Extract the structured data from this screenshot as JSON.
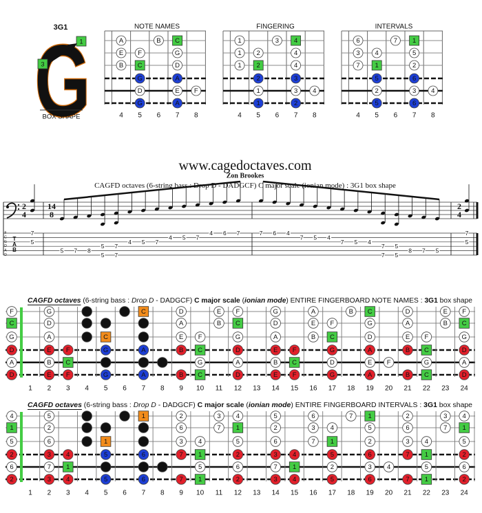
{
  "logo": {
    "name": "3G1",
    "letter": "G",
    "markers": [
      1,
      3
    ],
    "caption": "BOX SHAPE"
  },
  "square_colors": [
    "#44cc44",
    "#f28c1c"
  ],
  "mini_diagrams": {
    "frets": [
      4,
      5,
      6,
      7,
      8
    ],
    "colors": [
      [
        "#ffffff",
        null,
        "#ffffff",
        "#44cc44",
        null
      ],
      [
        "#ffffff",
        "#ffffff",
        null,
        "#ffffff",
        null
      ],
      [
        "#ffffff",
        "#44cc44",
        null,
        "#ffffff",
        null
      ],
      [
        null,
        "#1d3fd6",
        null,
        "#1d3fd6",
        null
      ],
      [
        null,
        "#ffffff",
        null,
        "#ffffff",
        "#ffffff"
      ],
      [
        null,
        "#1d3fd6",
        null,
        "#1d3fd6",
        null
      ]
    ],
    "panels": [
      {
        "title": "NOTE NAMES",
        "rows": [
          [
            "A",
            null,
            "B",
            "C",
            null
          ],
          [
            "E",
            "F",
            null,
            "G",
            null
          ],
          [
            "B",
            "C",
            null,
            "D",
            null
          ],
          [
            null,
            "G",
            null,
            "A",
            null
          ],
          [
            null,
            "D",
            null,
            "E",
            "F"
          ],
          [
            null,
            "G",
            null,
            "A",
            null
          ]
        ]
      },
      {
        "title": "FINGERING",
        "rows": [
          [
            1,
            null,
            3,
            4,
            null
          ],
          [
            1,
            2,
            null,
            4,
            null
          ],
          [
            1,
            2,
            null,
            4,
            null
          ],
          [
            null,
            2,
            null,
            3,
            null
          ],
          [
            null,
            1,
            null,
            3,
            4
          ],
          [
            null,
            1,
            null,
            2,
            null
          ]
        ]
      },
      {
        "title": "INTERVALS",
        "rows": [
          [
            6,
            null,
            7,
            1,
            null
          ],
          [
            3,
            4,
            null,
            5,
            null
          ],
          [
            7,
            1,
            null,
            2,
            null
          ],
          [
            null,
            5,
            null,
            6,
            null
          ],
          [
            null,
            2,
            null,
            3,
            4
          ],
          [
            null,
            5,
            null,
            6,
            null
          ]
        ]
      }
    ]
  },
  "score": {
    "site": "www.cagedoctaves.com",
    "author": "Zon Brookes",
    "subtitle": "CAGFD octaves (6-string bass : Drop D - DADGCF) C major scale (ionian mode) : 3G1 box shape",
    "time_signatures": [
      [
        2,
        4
      ],
      [
        14,
        8
      ],
      [
        2,
        4
      ]
    ],
    "tab_clef": "TAB",
    "string_names": [
      "F",
      "C",
      "G",
      "D",
      "A",
      "D"
    ],
    "measures": [
      [
        [
          7,
          null,
          5,
          null,
          null,
          null
        ]
      ],
      [
        [
          null,
          null,
          null,
          null,
          5,
          null
        ],
        [
          null,
          null,
          null,
          null,
          7,
          null
        ],
        [
          null,
          null,
          null,
          null,
          8,
          null
        ],
        [
          null,
          null,
          null,
          5,
          null,
          5
        ],
        [
          null,
          null,
          null,
          7,
          null,
          7
        ],
        [
          null,
          null,
          4,
          null,
          null,
          null
        ],
        [
          null,
          null,
          5,
          null,
          null,
          null
        ],
        [
          null,
          null,
          7,
          null,
          null,
          null
        ],
        [
          null,
          4,
          null,
          null,
          null,
          null
        ],
        [
          null,
          5,
          null,
          null,
          null,
          null
        ],
        [
          null,
          7,
          null,
          null,
          null,
          null
        ],
        [
          4,
          null,
          null,
          null,
          null,
          null
        ],
        [
          6,
          null,
          null,
          null,
          null,
          null
        ],
        [
          7,
          null,
          null,
          null,
          null,
          null
        ]
      ],
      [
        [
          7,
          null,
          null,
          null,
          null,
          null
        ],
        [
          6,
          null,
          null,
          null,
          null,
          null
        ],
        [
          4,
          null,
          null,
          null,
          null,
          null
        ],
        [
          null,
          7,
          null,
          null,
          null,
          null
        ],
        [
          null,
          5,
          null,
          null,
          null,
          null
        ],
        [
          null,
          4,
          null,
          null,
          null,
          null
        ],
        [
          null,
          null,
          7,
          null,
          null,
          null
        ],
        [
          null,
          null,
          5,
          null,
          null,
          null
        ],
        [
          null,
          null,
          4,
          null,
          null,
          null
        ],
        [
          null,
          null,
          null,
          7,
          null,
          7
        ],
        [
          null,
          null,
          null,
          5,
          null,
          5
        ],
        [
          null,
          null,
          null,
          null,
          8,
          null
        ],
        [
          null,
          null,
          null,
          null,
          7,
          null
        ],
        [
          null,
          null,
          null,
          null,
          5,
          null
        ]
      ],
      [
        [
          7,
          null,
          5,
          null,
          null,
          null
        ]
      ]
    ]
  },
  "fingerboards": {
    "fret_numbers": [
      1,
      2,
      3,
      4,
      5,
      6,
      7,
      8,
      9,
      10,
      11,
      12,
      13,
      14,
      15,
      16,
      17,
      18,
      19,
      20,
      21,
      22,
      23,
      24
    ],
    "colors": [
      [
        "#ffffff",
        null,
        "#ffffff",
        null,
        "#111111",
        null,
        "#111111",
        "#f28c1c",
        null,
        "#ffffff",
        null,
        "#ffffff",
        "#ffffff",
        null,
        "#ffffff",
        null,
        "#ffffff",
        null,
        "#ffffff",
        "#44cc44",
        null,
        "#ffffff",
        null,
        "#ffffff",
        "#ffffff"
      ],
      [
        "#44cc44",
        null,
        "#ffffff",
        null,
        "#111111",
        "#111111",
        null,
        "#111111",
        null,
        "#ffffff",
        null,
        "#ffffff",
        "#44cc44",
        null,
        "#ffffff",
        null,
        "#ffffff",
        "#ffffff",
        null,
        "#ffffff",
        null,
        "#ffffff",
        null,
        "#ffffff",
        "#44cc44"
      ],
      [
        "#ffffff",
        null,
        "#ffffff",
        null,
        "#111111",
        "#f28c1c",
        null,
        "#111111",
        null,
        "#ffffff",
        "#ffffff",
        null,
        "#ffffff",
        null,
        "#ffffff",
        null,
        "#ffffff",
        "#44cc44",
        null,
        "#ffffff",
        null,
        "#ffffff",
        "#ffffff",
        null,
        "#ffffff"
      ],
      [
        "#e3202b",
        null,
        "#e3202b",
        "#e3202b",
        null,
        "#1d3fd6",
        null,
        "#1d3fd6",
        null,
        "#e3202b",
        "#44cc44",
        null,
        "#e3202b",
        null,
        "#e3202b",
        "#e3202b",
        null,
        "#e3202b",
        null,
        "#e3202b",
        null,
        "#e3202b",
        "#44cc44",
        null,
        "#e3202b"
      ],
      [
        "#ffffff",
        null,
        "#ffffff",
        "#44cc44",
        null,
        "#111111",
        null,
        "#111111",
        "#111111",
        null,
        "#ffffff",
        null,
        "#ffffff",
        null,
        "#ffffff",
        "#44cc44",
        null,
        "#ffffff",
        null,
        "#ffffff",
        "#ffffff",
        null,
        "#ffffff",
        null,
        "#ffffff"
      ],
      [
        "#e3202b",
        null,
        "#e3202b",
        "#e3202b",
        null,
        "#1d3fd6",
        null,
        "#1d3fd6",
        null,
        "#e3202b",
        "#44cc44",
        null,
        "#e3202b",
        null,
        "#e3202b",
        "#e3202b",
        null,
        "#e3202b",
        null,
        "#e3202b",
        null,
        "#e3202b",
        "#44cc44",
        null,
        "#e3202b"
      ]
    ],
    "boards": [
      {
        "title_parts": [
          "CAGFD octaves",
          " (6-string bass : ",
          "Drop D",
          " - DADGCF) ",
          "C major scale",
          " (",
          "ionian mode",
          ") ENTIRE FINGERBOARD NOTE NAMES : ",
          "3G1",
          " box shape"
        ],
        "rows": [
          [
            "F",
            null,
            "G",
            null,
            "A",
            null,
            "B",
            "C",
            null,
            "D",
            null,
            "E",
            "F",
            null,
            "G",
            null,
            "A",
            null,
            "B",
            "C",
            null,
            "D",
            null,
            "E",
            "F"
          ],
          [
            "C",
            null,
            "D",
            null,
            "E",
            "F",
            null,
            "G",
            null,
            "A",
            null,
            "B",
            "C",
            null,
            "D",
            null,
            "E",
            "F",
            null,
            "G",
            null,
            "A",
            null,
            "B",
            "C"
          ],
          [
            "G",
            null,
            "A",
            null,
            "B",
            "C",
            null,
            "D",
            null,
            "E",
            "F",
            null,
            "G",
            null,
            "A",
            null,
            "B",
            "C",
            null,
            "D",
            null,
            "E",
            "F",
            null,
            "G"
          ],
          [
            "D",
            null,
            "E",
            "F",
            null,
            "G",
            null,
            "A",
            null,
            "B",
            "C",
            null,
            "D",
            null,
            "E",
            "F",
            null,
            "G",
            null,
            "A",
            null,
            "B",
            "C",
            null,
            "D"
          ],
          [
            "A",
            null,
            "B",
            "C",
            null,
            "D",
            null,
            "E",
            "F",
            null,
            "G",
            null,
            "A",
            null,
            "B",
            "C",
            null,
            "D",
            null,
            "E",
            "F",
            null,
            "G",
            null,
            "A"
          ],
          [
            "D",
            null,
            "E",
            "F",
            null,
            "G",
            null,
            "A",
            null,
            "B",
            "C",
            null,
            "D",
            null,
            "E",
            "F",
            null,
            "G",
            null,
            "A",
            null,
            "B",
            "C",
            null,
            "D"
          ]
        ]
      },
      {
        "title_parts": [
          "CAGFD octaves",
          " (6-string bass : ",
          "Drop D",
          " - DADGCF) ",
          "C major scale",
          " (",
          "ionian mode",
          ") ENTIRE FINGERBOARD INTERVALS : ",
          "3G1",
          " box shape"
        ],
        "rows": [
          [
            4,
            null,
            5,
            null,
            6,
            null,
            7,
            1,
            null,
            2,
            null,
            3,
            4,
            null,
            5,
            null,
            6,
            null,
            7,
            1,
            null,
            2,
            null,
            3,
            4
          ],
          [
            1,
            null,
            2,
            null,
            3,
            4,
            null,
            5,
            null,
            6,
            null,
            7,
            1,
            null,
            2,
            null,
            3,
            4,
            null,
            5,
            null,
            6,
            null,
            7,
            1
          ],
          [
            5,
            null,
            6,
            null,
            7,
            1,
            null,
            2,
            null,
            3,
            4,
            null,
            5,
            null,
            6,
            null,
            7,
            1,
            null,
            2,
            null,
            3,
            4,
            null,
            5
          ],
          [
            2,
            null,
            3,
            4,
            null,
            5,
            null,
            6,
            null,
            7,
            1,
            null,
            2,
            null,
            3,
            4,
            null,
            5,
            null,
            6,
            null,
            7,
            1,
            null,
            2
          ],
          [
            6,
            null,
            7,
            1,
            null,
            2,
            null,
            3,
            4,
            null,
            5,
            null,
            6,
            null,
            7,
            1,
            null,
            2,
            null,
            3,
            4,
            null,
            5,
            null,
            6
          ],
          [
            2,
            null,
            3,
            4,
            null,
            5,
            null,
            6,
            null,
            7,
            1,
            null,
            2,
            null,
            3,
            4,
            null,
            5,
            null,
            6,
            null,
            7,
            1,
            null,
            2
          ]
        ]
      }
    ]
  }
}
